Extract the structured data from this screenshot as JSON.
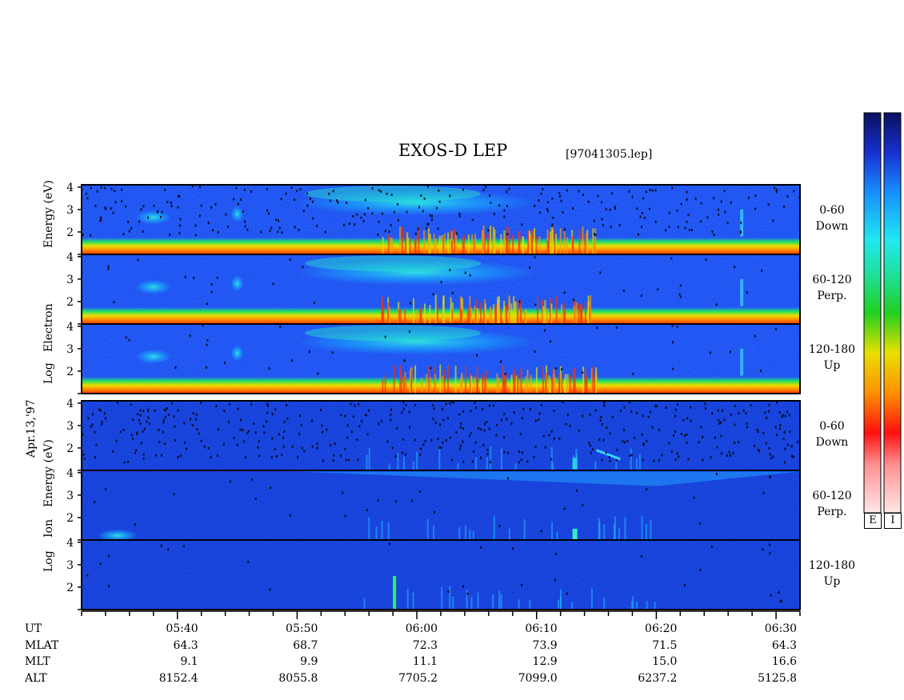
{
  "chart_data": {
    "type": "heatmap",
    "title": "EXOS-D LEP",
    "filename": "[97041305.lep]",
    "date_label": "Apr.13,'97",
    "x_axis": {
      "quantity": "UT",
      "range": [
        "05:32",
        "06:32"
      ],
      "ticks": [
        "05:40",
        "05:50",
        "06:00",
        "06:10",
        "06:20",
        "06:30"
      ]
    },
    "y_axis_ticks": [
      "4",
      "3",
      "2"
    ],
    "ylim": [
      1,
      4.1
    ],
    "log_scale": true,
    "groups": [
      {
        "name": "electron",
        "ylabel_parts": [
          "Log",
          "Electron",
          "Energy (eV)"
        ],
        "panels": [
          {
            "angle": "0-60",
            "direction": "Down"
          },
          {
            "angle": "60-120",
            "direction": "Perp."
          },
          {
            "angle": "120-180",
            "direction": "Up"
          }
        ]
      },
      {
        "name": "ion",
        "ylabel_parts": [
          "Log",
          "Ion",
          "Energy (eV)"
        ],
        "panels": [
          {
            "angle": "0-60",
            "direction": "Down"
          },
          {
            "angle": "60-120",
            "direction": "Perp."
          },
          {
            "angle": "120-180",
            "direction": "Up"
          }
        ]
      }
    ],
    "colorbars": [
      {
        "label": "E"
      },
      {
        "label": "I"
      }
    ],
    "colors": [
      "#0a1a78",
      "#1040ff",
      "#19b4ff",
      "#1ee8e8",
      "#22d060",
      "#1fd41f",
      "#d8e000",
      "#ffa000",
      "#ff2000",
      "#ffd8d8"
    ],
    "orbit_table": {
      "row_labels": [
        "UT",
        "MLAT",
        "MLT",
        "ALT"
      ],
      "columns": [
        {
          "UT": "05:40",
          "MLAT": "64.3",
          "MLT": "9.1",
          "ALT": "8152.4"
        },
        {
          "UT": "05:50",
          "MLAT": "68.7",
          "MLT": "9.9",
          "ALT": "8055.8"
        },
        {
          "UT": "06:00",
          "MLAT": "72.3",
          "MLT": "11.1",
          "ALT": "7705.2"
        },
        {
          "UT": "06:10",
          "MLAT": "73.9",
          "MLT": "12.9",
          "ALT": "7099.0"
        },
        {
          "UT": "06:20",
          "MLAT": "71.5",
          "MLT": "15.0",
          "ALT": "6237.2"
        },
        {
          "UT": "06:30",
          "MLAT": "64.3",
          "MLT": "16.6",
          "ALT": "5125.8"
        }
      ]
    }
  }
}
